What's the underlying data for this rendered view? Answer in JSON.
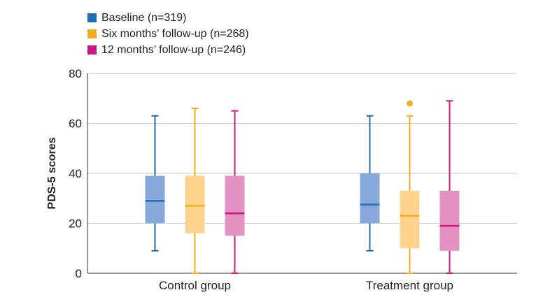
{
  "chart_data": {
    "type": "box",
    "ylabel": "PDS-5 scores",
    "ylim": [
      0,
      80
    ],
    "yticks": [
      0,
      20,
      40,
      60,
      80
    ],
    "categories": [
      "Control group",
      "Treatment group"
    ],
    "legend_placement": "top-left",
    "grid": true,
    "series": [
      {
        "name": "Baseline (n=319)",
        "color": "#1f6db3",
        "fill": "#86a8da",
        "boxes": [
          {
            "min": 9,
            "q1": 20,
            "median": 29,
            "q3": 39,
            "max": 63,
            "outliers": []
          },
          {
            "min": 9,
            "q1": 20,
            "median": 27.5,
            "q3": 40,
            "max": 63,
            "outliers": []
          }
        ]
      },
      {
        "name": "Six months’ follow-up (n=268)",
        "color": "#f4ae1f",
        "fill": "#fdd38e",
        "boxes": [
          {
            "min": 0,
            "q1": 16,
            "median": 27,
            "q3": 39,
            "max": 66,
            "outliers": []
          },
          {
            "min": 0,
            "q1": 10,
            "median": 23,
            "q3": 33,
            "max": 63,
            "outliers": [
              68
            ]
          }
        ]
      },
      {
        "name": "12 months’ follow-up (n=246)",
        "color": "#cc1682",
        "fill": "#e492c1",
        "boxes": [
          {
            "min": 0,
            "q1": 15,
            "median": 24,
            "q3": 39,
            "max": 65,
            "outliers": []
          },
          {
            "min": 0,
            "q1": 9,
            "median": 19,
            "q3": 33,
            "max": 69,
            "outliers": []
          }
        ]
      }
    ]
  }
}
